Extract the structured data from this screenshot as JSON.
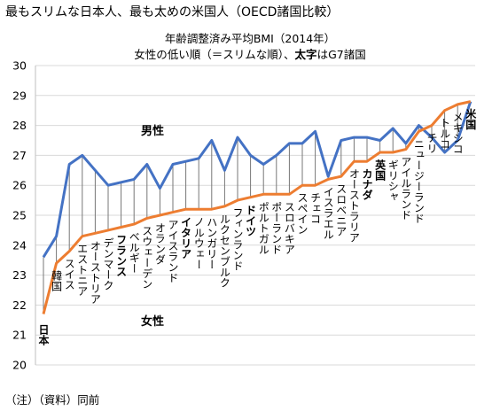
{
  "title": "最もスリムな日本人、最も太めの米国人（OECD諸国比較）",
  "subtitle_line1": "年齢調整済み平均BMI（2014年）",
  "subtitle_line2_a": "女性の低い順（＝スリムな順）、",
  "subtitle_line2_b": "太字",
  "subtitle_line2_c": "はG7諸国",
  "footnote": "（注）（資料）同前",
  "colors": {
    "male": "#4472C4",
    "female": "#ED7D31",
    "connector": "#777777",
    "grid": "#D9D9D9"
  },
  "chart_data": {
    "type": "line",
    "ylim": [
      20,
      30
    ],
    "yticks": [
      20,
      21,
      22,
      23,
      24,
      25,
      26,
      27,
      28,
      29,
      30
    ],
    "grid": false,
    "categories": [
      "日本",
      "韓国",
      "スイス",
      "エストニア",
      "オーストリア",
      "デンマーク",
      "フランス",
      "ベルギー",
      "スウェーデン",
      "オランダ",
      "アイスランド",
      "イタリア",
      "ノルウェー",
      "ハンガリー",
      "ルクセンブルク",
      "フィンランド",
      "ドイツ",
      "ポルトガル",
      "ポーランド",
      "スロバキア",
      "スペイン",
      "チェコ",
      "イスラエル",
      "スロベニア",
      "オーストラリア",
      "カナダ",
      "英国",
      "ギリシャ",
      "アイルランド",
      "ニュージーランド",
      "チリ",
      "トルコ",
      "メキシコ",
      "米国"
    ],
    "g7": [
      "日本",
      "フランス",
      "イタリア",
      "ドイツ",
      "カナダ",
      "英国",
      "米国"
    ],
    "series": [
      {
        "name": "男性",
        "values": [
          23.6,
          24.3,
          26.7,
          27.0,
          26.5,
          26.0,
          26.1,
          26.2,
          26.7,
          25.9,
          26.7,
          26.8,
          26.9,
          27.5,
          26.5,
          27.6,
          27.0,
          26.7,
          27.0,
          27.4,
          27.4,
          27.8,
          26.3,
          27.5,
          27.6,
          27.6,
          27.5,
          27.9,
          27.4,
          28.0,
          27.6,
          27.1,
          27.5,
          28.8
        ]
      },
      {
        "name": "女性",
        "values": [
          21.7,
          23.4,
          23.8,
          24.3,
          24.4,
          24.5,
          24.6,
          24.7,
          24.9,
          25.0,
          25.1,
          25.2,
          25.2,
          25.2,
          25.3,
          25.5,
          25.6,
          25.7,
          25.7,
          25.7,
          26.0,
          26.0,
          26.2,
          26.3,
          26.8,
          26.8,
          27.1,
          27.1,
          27.2,
          27.8,
          28.0,
          28.5,
          28.7,
          28.8
        ]
      }
    ]
  }
}
